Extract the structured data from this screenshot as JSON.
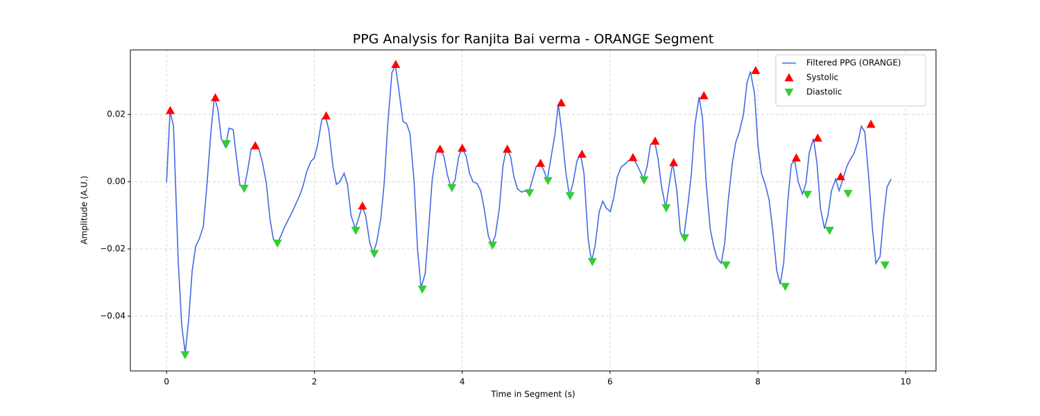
{
  "chart_data": {
    "type": "line",
    "title": "PPG Analysis for Ranjita Bai verma - ORANGE Segment",
    "x_label": "Time in Segment (s)",
    "y_label": "Amplitude (A.U.)",
    "xlim": [
      -0.49,
      10.41
    ],
    "ylim": [
      -0.0563,
      0.0392
    ],
    "xticks": [
      0,
      2,
      4,
      6,
      8,
      10
    ],
    "yticks": [
      {
        "value": -0.04,
        "label": "−0.04"
      },
      {
        "value": -0.02,
        "label": "−0.02"
      },
      {
        "value": 0,
        "label": "0.00"
      },
      0.02
    ],
    "grid": true,
    "legend": "upper right",
    "series": [
      {
        "name": "Filtered PPG (ORANGE)",
        "type": "line",
        "color": "#4169e1",
        "x": [
          0,
          0.047,
          0.094,
          0.159,
          0.206,
          0.253,
          0.3,
          0.347,
          0.394,
          0.441,
          0.497,
          0.544,
          0.6,
          0.647,
          0.694,
          0.741,
          0.797,
          0.844,
          0.901,
          0.947,
          0.994,
          1.051,
          1.098,
          1.144,
          1.201,
          1.248,
          1.295,
          1.351,
          1.398,
          1.445,
          1.501,
          1.548,
          1.595,
          1.651,
          1.698,
          1.745,
          1.801,
          1.848,
          1.895,
          1.951,
          1.998,
          2.045,
          2.101,
          2.148,
          2.195,
          2.251,
          2.298,
          2.345,
          2.402,
          2.448,
          2.495,
          2.552,
          2.598,
          2.645,
          2.692,
          2.749,
          2.795,
          2.842,
          2.899,
          2.946,
          2.992,
          3.049,
          3.096,
          3.143,
          3.199,
          3.246,
          3.293,
          3.349,
          3.396,
          3.443,
          3.499,
          3.546,
          3.593,
          3.649,
          3.696,
          3.752,
          3.799,
          3.846,
          3.902,
          3.949,
          3.996,
          4.053,
          4.099,
          4.146,
          4.203,
          4.25,
          4.296,
          4.353,
          4.4,
          4.447,
          4.503,
          4.55,
          4.597,
          4.653,
          4.7,
          4.747,
          4.803,
          4.85,
          4.897,
          4.953,
          5,
          5.047,
          5.103,
          5.15,
          5.197,
          5.253,
          5.3,
          5.347,
          5.403,
          5.45,
          5.497,
          5.553,
          5.6,
          5.647,
          5.704,
          5.75,
          5.797,
          5.854,
          5.901,
          5.947,
          6.004,
          6.051,
          6.098,
          6.154,
          6.201,
          6.248,
          6.304,
          6.351,
          6.398,
          6.454,
          6.501,
          6.548,
          6.604,
          6.651,
          6.698,
          6.754,
          6.801,
          6.848,
          6.904,
          6.951,
          6.998,
          7.054,
          7.101,
          7.148,
          7.205,
          7.251,
          7.298,
          7.355,
          7.402,
          7.448,
          7.505,
          7.552,
          7.598,
          7.655,
          7.702,
          7.749,
          7.805,
          7.852,
          7.899,
          7.955,
          8.002,
          8.049,
          8.105,
          8.152,
          8.199,
          8.255,
          8.302,
          8.349,
          8.405,
          8.452,
          8.499,
          8.546,
          8.602,
          8.649,
          8.696,
          8.752,
          8.799,
          8.846,
          8.902,
          8.949,
          8.996,
          9.053,
          9.099,
          9.146,
          9.203,
          9.25,
          9.296,
          9.353,
          9.4,
          9.447,
          9.503,
          9.55,
          9.597,
          9.653,
          9.7,
          9.747,
          9.803
        ],
        "values": [
          -0.0002,
          0.021,
          0.0165,
          -0.0243,
          -0.0429,
          -0.0511,
          -0.0408,
          -0.0264,
          -0.0192,
          -0.0171,
          -0.0134,
          -0.0016,
          0.0148,
          0.0252,
          0.0216,
          0.0128,
          0.0103,
          0.0159,
          0.0155,
          0.007,
          -0.0012,
          -0.0019,
          0.0035,
          0.0097,
          0.0111,
          0.0097,
          0.006,
          -0.0006,
          -0.0109,
          -0.0171,
          -0.0181,
          -0.0161,
          -0.0136,
          -0.0111,
          -0.0091,
          -0.0068,
          -0.0041,
          -0.0012,
          0.0029,
          0.006,
          0.007,
          0.0111,
          0.0186,
          0.0196,
          0.0155,
          0.0045,
          -0.0008,
          0,
          0.0025,
          -0.0008,
          -0.0099,
          -0.014,
          -0.0109,
          -0.0074,
          -0.0099,
          -0.0181,
          -0.0212,
          -0.0181,
          -0.0109,
          0,
          0.0169,
          0.0324,
          0.0346,
          0.0272,
          0.0179,
          0.0173,
          0.0144,
          0,
          -0.0202,
          -0.0315,
          -0.0274,
          -0.014,
          0.0004,
          0.0087,
          0.0097,
          0.0076,
          0.0021,
          -0.0016,
          0.0004,
          0.007,
          0.0101,
          0.0076,
          0.0025,
          0,
          -0.0006,
          -0.0027,
          -0.0078,
          -0.0161,
          -0.0188,
          -0.0161,
          -0.0078,
          0.0045,
          0.0097,
          0.0076,
          0.0014,
          -0.0021,
          -0.0031,
          -0.0027,
          -0.0033,
          0.0008,
          0.0045,
          0.0054,
          0.0035,
          0.0004,
          0.0066,
          0.0138,
          0.0231,
          0.0148,
          0.0025,
          -0.0041,
          -0.0006,
          0.0062,
          0.0082,
          0.0025,
          -0.0171,
          -0.0237,
          -0.0192,
          -0.0089,
          -0.0058,
          -0.0078,
          -0.0089,
          -0.0047,
          0.0014,
          0.0045,
          0.0052,
          0.0062,
          0.007,
          0.0056,
          0.0035,
          0.0008,
          0.0045,
          0.0111,
          0.012,
          0.0066,
          -0.0016,
          -0.0078,
          -0.0006,
          0.0056,
          -0.0027,
          -0.0151,
          -0.0165,
          -0.0068,
          0.0025,
          0.0169,
          0.0252,
          0.019,
          0.0004,
          -0.014,
          -0.0192,
          -0.0227,
          -0.0243,
          -0.0181,
          -0.0058,
          0.0056,
          0.0118,
          0.0148,
          0.02,
          0.0293,
          0.0328,
          0.0262,
          0.0107,
          0.0025,
          -0.0012,
          -0.0054,
          -0.014,
          -0.0264,
          -0.0305,
          -0.0243,
          -0.0058,
          0.0052,
          0.0062,
          0,
          -0.0037,
          -0.0006,
          0.0087,
          0.0128,
          0.0056,
          -0.0078,
          -0.014,
          -0.0099,
          -0.0027,
          0.0008,
          -0.0027,
          0.0004,
          0.0045,
          0.0066,
          0.0082,
          0.0118,
          0.0165,
          0.0148,
          0.0004,
          -0.014,
          -0.0243,
          -0.0223,
          -0.0109,
          -0.0016,
          0.0008
        ]
      },
      {
        "name": "Systolic",
        "type": "scatter",
        "marker": "triangle-up",
        "color": "#ff0000",
        "x": [
          0.05,
          0.66,
          1.2,
          2.16,
          2.65,
          3.1,
          3.7,
          4.0,
          4.61,
          5.06,
          5.34,
          5.62,
          6.31,
          6.61,
          6.86,
          7.27,
          7.97,
          8.52,
          8.81,
          9.12,
          9.53
        ],
        "values": [
          0.0212,
          0.025,
          0.0107,
          0.0196,
          -0.0072,
          0.0349,
          0.0097,
          0.01,
          0.0097,
          0.0055,
          0.0235,
          0.0082,
          0.0072,
          0.0121,
          0.0057,
          0.0256,
          0.0331,
          0.0071,
          0.013,
          0.0015,
          0.0171
        ]
      },
      {
        "name": "Diastolic",
        "type": "scatter",
        "marker": "triangle-down",
        "color": "#32cd32",
        "x": [
          0.25,
          0.81,
          1.05,
          1.5,
          2.56,
          2.81,
          3.46,
          3.86,
          4.41,
          4.91,
          5.16,
          5.46,
          5.76,
          6.46,
          6.76,
          7.01,
          7.57,
          8.37,
          8.67,
          8.97,
          9.22,
          9.72
        ],
        "values": [
          -0.0515,
          0.0113,
          -0.002,
          -0.0183,
          -0.0145,
          -0.0214,
          -0.032,
          -0.0018,
          -0.0189,
          -0.0033,
          0.0003,
          -0.0042,
          -0.0238,
          0.0005,
          -0.0078,
          -0.0167,
          -0.0248,
          -0.0312,
          -0.0038,
          -0.0145,
          -0.0035,
          -0.0248
        ]
      }
    ]
  }
}
